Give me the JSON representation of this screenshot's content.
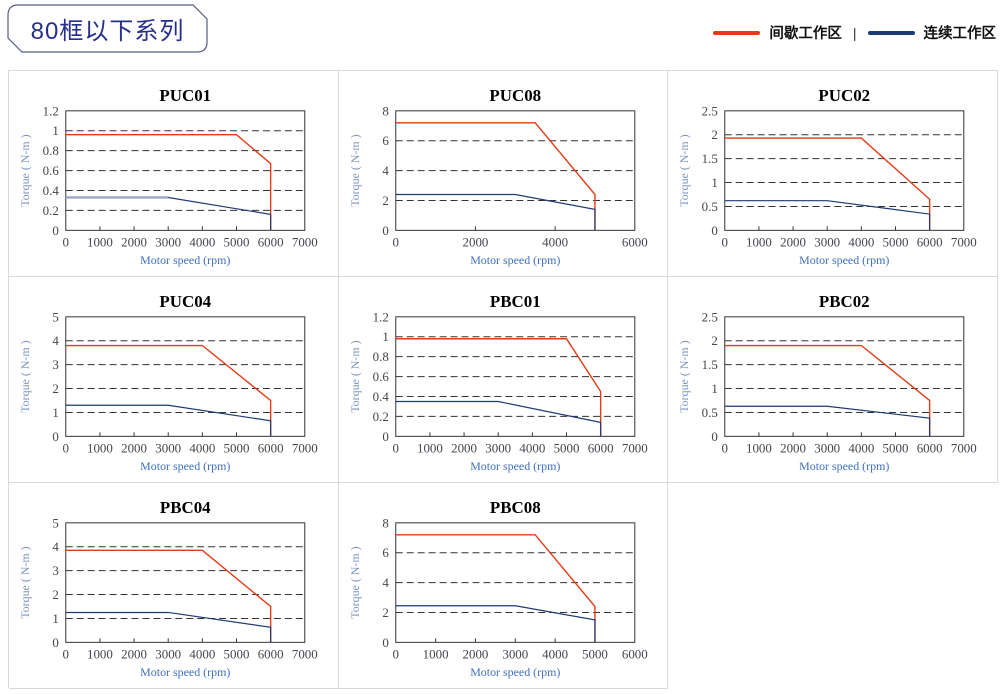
{
  "header": {
    "title": "80框以下系列"
  },
  "legend": {
    "items": [
      {
        "label": "间歇工作区",
        "color": "#e43a15"
      },
      {
        "label": "连续工作区",
        "color": "#1e3a72"
      }
    ],
    "separator": "|"
  },
  "chart_data": [
    {
      "type": "line",
      "title": "PUC01",
      "xlabel": "Motor speed (rpm)",
      "ylabel": "Torque ( N-m )",
      "xlim": [
        0,
        7000
      ],
      "ylim": [
        0,
        1.2
      ],
      "xticks": [
        0,
        1000,
        2000,
        3000,
        4000,
        5000,
        6000,
        7000
      ],
      "yticks": [
        0,
        0.2,
        0.4,
        0.6,
        0.8,
        1,
        1.2
      ],
      "grid": "dashed-horizontal",
      "series": [
        {
          "name": "间歇工作区",
          "color": "#e43a15",
          "width": 1.4,
          "points": [
            [
              0,
              0.96
            ],
            [
              5000,
              0.96
            ],
            [
              6000,
              0.67
            ],
            [
              6000,
              0
            ]
          ]
        },
        {
          "name": "连续工作区",
          "color": "#1e3a72",
          "width": 1.2,
          "points": [
            [
              0,
              0.33
            ],
            [
              3000,
              0.33
            ],
            [
              6000,
              0.16
            ],
            [
              6000,
              0
            ]
          ],
          "overlay": {
            "color": "#9aa6c2",
            "width": 2.4,
            "points": [
              [
                0,
                0.33
              ],
              [
                3000,
                0.33
              ]
            ]
          }
        }
      ]
    },
    {
      "type": "line",
      "title": "PUC08",
      "xlabel": "Motor speed (rpm)",
      "ylabel": "Torque ( N-m )",
      "xlim": [
        0,
        6000
      ],
      "ylim": [
        0,
        8
      ],
      "xticks": [
        0,
        2000,
        4000,
        6000
      ],
      "yticks": [
        0,
        2,
        4,
        6,
        8
      ],
      "grid": "dashed-horizontal",
      "series": [
        {
          "name": "间歇工作区",
          "color": "#e43a15",
          "width": 1.4,
          "points": [
            [
              0,
              7.2
            ],
            [
              3500,
              7.2
            ],
            [
              5000,
              2.4
            ],
            [
              5000,
              0
            ]
          ]
        },
        {
          "name": "连续工作区",
          "color": "#1e3a72",
          "width": 1.2,
          "points": [
            [
              0,
              2.4
            ],
            [
              3000,
              2.4
            ],
            [
              5000,
              1.4
            ],
            [
              5000,
              0
            ]
          ]
        }
      ]
    },
    {
      "type": "line",
      "title": "PUC02",
      "xlabel": "Motor speed (rpm)",
      "ylabel": "Torque ( N-m )",
      "xlim": [
        0,
        7000
      ],
      "ylim": [
        0,
        2.5
      ],
      "xticks": [
        0,
        1000,
        2000,
        3000,
        4000,
        5000,
        6000,
        7000
      ],
      "yticks": [
        0,
        0.5,
        1,
        1.5,
        2,
        2.5
      ],
      "grid": "dashed-horizontal",
      "series": [
        {
          "name": "间歇工作区",
          "color": "#e43a15",
          "width": 1.4,
          "points": [
            [
              0,
              1.93
            ],
            [
              4000,
              1.93
            ],
            [
              6000,
              0.65
            ],
            [
              6000,
              0
            ]
          ]
        },
        {
          "name": "连续工作区",
          "color": "#1e3a72",
          "width": 1.2,
          "points": [
            [
              0,
              0.62
            ],
            [
              3000,
              0.62
            ],
            [
              6000,
              0.34
            ],
            [
              6000,
              0
            ]
          ]
        }
      ]
    },
    {
      "type": "line",
      "title": "PUC04",
      "xlabel": "Motor speed (rpm)",
      "ylabel": "Torque ( N-m )",
      "xlim": [
        0,
        7000
      ],
      "ylim": [
        0,
        5
      ],
      "xticks": [
        0,
        1000,
        2000,
        3000,
        4000,
        5000,
        6000,
        7000
      ],
      "yticks": [
        0,
        1,
        2,
        3,
        4,
        5
      ],
      "grid": "dashed-horizontal",
      "series": [
        {
          "name": "间歇工作区",
          "color": "#e43a15",
          "width": 1.4,
          "points": [
            [
              0,
              3.8
            ],
            [
              4000,
              3.8
            ],
            [
              6000,
              1.5
            ],
            [
              6000,
              0
            ]
          ]
        },
        {
          "name": "连续工作区",
          "color": "#1e3a72",
          "width": 1.2,
          "points": [
            [
              0,
              1.3
            ],
            [
              3000,
              1.3
            ],
            [
              6000,
              0.65
            ],
            [
              6000,
              0
            ]
          ]
        }
      ]
    },
    {
      "type": "line",
      "title": "PBC01",
      "xlabel": "Motor speed (rpm)",
      "ylabel": "Torque ( N-m )",
      "xlim": [
        0,
        7000
      ],
      "ylim": [
        0,
        1.2
      ],
      "xticks": [
        0,
        1000,
        2000,
        3000,
        4000,
        5000,
        6000,
        7000
      ],
      "yticks": [
        0,
        0.2,
        0.4,
        0.6,
        0.8,
        1,
        1.2
      ],
      "grid": "dashed-horizontal",
      "series": [
        {
          "name": "间歇工作区",
          "color": "#e43a15",
          "width": 1.4,
          "points": [
            [
              0,
              0.98
            ],
            [
              5000,
              0.98
            ],
            [
              6000,
              0.45
            ],
            [
              6000,
              0
            ]
          ]
        },
        {
          "name": "连续工作区",
          "color": "#1e3a72",
          "width": 1.2,
          "points": [
            [
              0,
              0.35
            ],
            [
              3000,
              0.35
            ],
            [
              6000,
              0.14
            ],
            [
              6000,
              0
            ]
          ]
        }
      ]
    },
    {
      "type": "line",
      "title": "PBC02",
      "xlabel": "Motor speed (rpm)",
      "ylabel": "Torque ( N-m )",
      "xlim": [
        0,
        7000
      ],
      "ylim": [
        0,
        2.5
      ],
      "xticks": [
        0,
        1000,
        2000,
        3000,
        4000,
        5000,
        6000,
        7000
      ],
      "yticks": [
        0,
        0.5,
        1,
        1.5,
        2,
        2.5
      ],
      "grid": "dashed-horizontal",
      "series": [
        {
          "name": "间歇工作区",
          "color": "#e43a15",
          "width": 1.4,
          "points": [
            [
              0,
              1.9
            ],
            [
              4000,
              1.9
            ],
            [
              6000,
              0.75
            ],
            [
              6000,
              0
            ]
          ]
        },
        {
          "name": "连续工作区",
          "color": "#1e3a72",
          "width": 1.2,
          "points": [
            [
              0,
              0.63
            ],
            [
              3000,
              0.63
            ],
            [
              6000,
              0.38
            ],
            [
              6000,
              0
            ]
          ]
        }
      ]
    },
    {
      "type": "line",
      "title": "PBC04",
      "xlabel": "Motor speed (rpm)",
      "ylabel": "Torque ( N-m )",
      "xlim": [
        0,
        7000
      ],
      "ylim": [
        0,
        5
      ],
      "xticks": [
        0,
        1000,
        2000,
        3000,
        4000,
        5000,
        6000,
        7000
      ],
      "yticks": [
        0,
        1,
        2,
        3,
        4,
        5
      ],
      "grid": "dashed-horizontal",
      "series": [
        {
          "name": "间歇工作区",
          "color": "#e43a15",
          "width": 1.4,
          "points": [
            [
              0,
              3.85
            ],
            [
              4000,
              3.85
            ],
            [
              6000,
              1.5
            ],
            [
              6000,
              0
            ]
          ]
        },
        {
          "name": "连续工作区",
          "color": "#1e3a72",
          "width": 1.2,
          "points": [
            [
              0,
              1.25
            ],
            [
              3000,
              1.25
            ],
            [
              6000,
              0.63
            ],
            [
              6000,
              0
            ]
          ]
        }
      ]
    },
    {
      "type": "line",
      "title": "PBC08",
      "xlabel": "Motor speed (rpm)",
      "ylabel": "Torque ( N-m )",
      "xlim": [
        0,
        6000
      ],
      "ylim": [
        0,
        8
      ],
      "xticks": [
        0,
        1000,
        2000,
        3000,
        4000,
        5000,
        6000
      ],
      "yticks": [
        0,
        2,
        4,
        6,
        8
      ],
      "grid": "dashed-horizontal",
      "series": [
        {
          "name": "间歇工作区",
          "color": "#e43a15",
          "width": 1.4,
          "points": [
            [
              0,
              7.2
            ],
            [
              3500,
              7.2
            ],
            [
              5000,
              2.4
            ],
            [
              5000,
              0
            ]
          ]
        },
        {
          "name": "连续工作区",
          "color": "#1e3a72",
          "width": 1.2,
          "points": [
            [
              0,
              2.45
            ],
            [
              3000,
              2.45
            ],
            [
              5000,
              1.5
            ],
            [
              5000,
              0
            ]
          ]
        }
      ]
    }
  ]
}
